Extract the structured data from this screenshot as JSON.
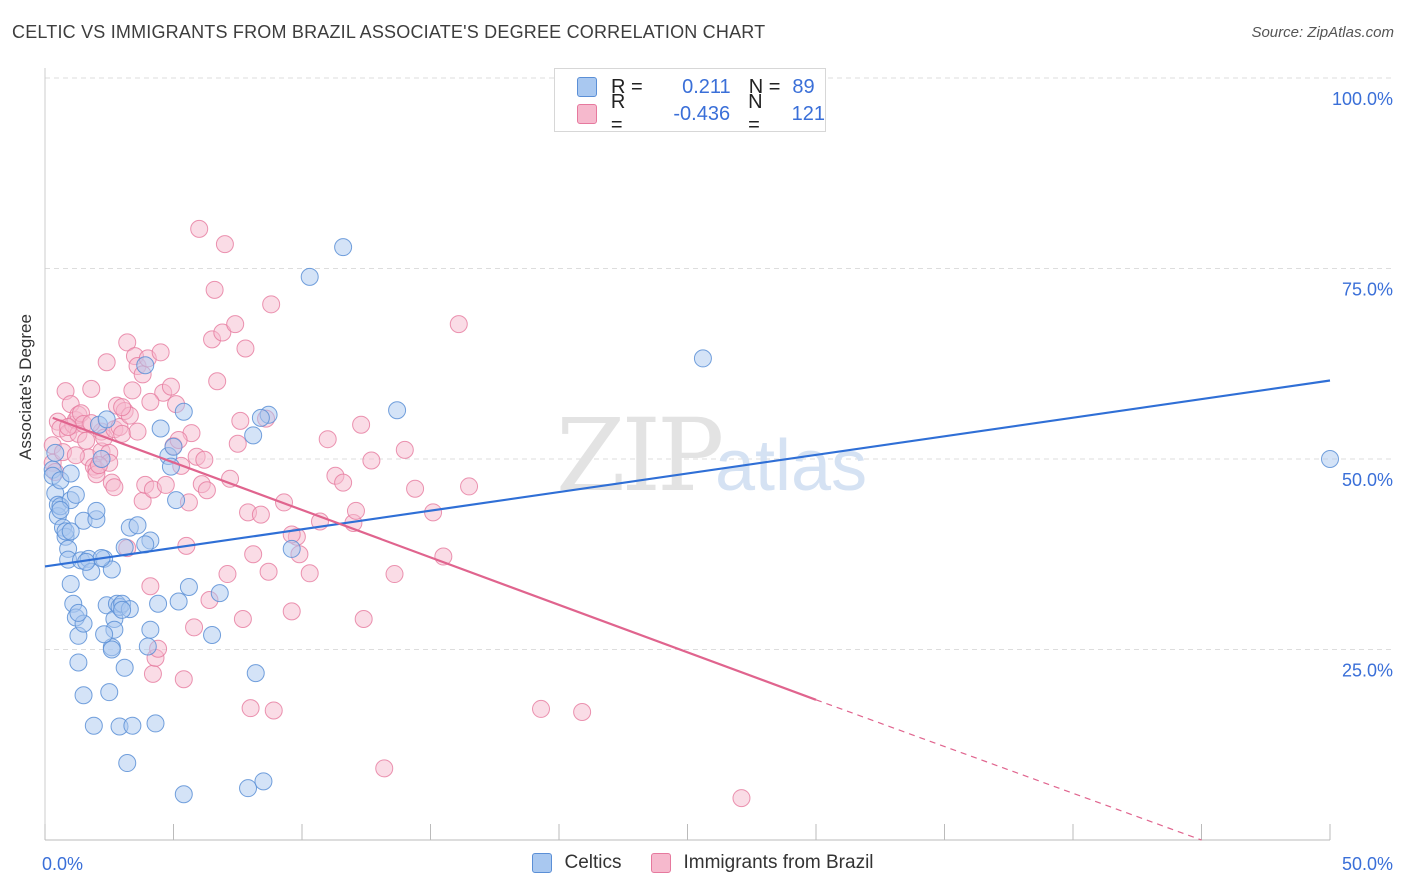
{
  "header": {
    "title": "CELTIC VS IMMIGRANTS FROM BRAZIL ASSOCIATE'S DEGREE CORRELATION CHART",
    "source": "Source: ZipAtlas.com"
  },
  "legend": {
    "rows": [
      {
        "r_label": "R =",
        "r_value": "0.211",
        "n_label": "N =",
        "n_value": "89"
      },
      {
        "r_label": "R =",
        "r_value": "-0.436",
        "n_label": "N =",
        "n_value": "121"
      }
    ]
  },
  "watermark": {
    "zip": "ZIP",
    "atlas": "atlas"
  },
  "colors": {
    "celtic_fill": "#a9c8f0",
    "celtic_stroke": "#5b8fd6",
    "celtic_line": "#2f6fd6",
    "brazil_fill": "#f6b9cd",
    "brazil_stroke": "#e6799e",
    "brazil_line": "#e0648e",
    "tick_label": "#3a6fd8",
    "grid": "#dddddd"
  },
  "chart_data": {
    "type": "scatter",
    "title": "CELTIC VS IMMIGRANTS FROM BRAZIL ASSOCIATE'S DEGREE CORRELATION CHART",
    "xlabel": "",
    "ylabel": "Associate's Degree",
    "xlim": [
      0,
      50
    ],
    "ylim": [
      0,
      100
    ],
    "x_tick_labels": [
      "0.0%",
      "50.0%"
    ],
    "y_tick_labels": [
      "100.0%",
      "75.0%",
      "50.0%",
      "25.0%"
    ],
    "y_tick_values": [
      100,
      75,
      50,
      25
    ],
    "grid": true,
    "legend_position": "top-center",
    "series": [
      {
        "name": "Celtics",
        "r": 0.211,
        "n": 89,
        "trend": {
          "x0": 0,
          "y0": 35.9,
          "x1": 50,
          "y1": 60.3
        },
        "points": [
          [
            0.3,
            48.6
          ],
          [
            0.3,
            47.8
          ],
          [
            0.4,
            50.8
          ],
          [
            0.4,
            45.5
          ],
          [
            0.5,
            44.0
          ],
          [
            0.5,
            42.5
          ],
          [
            0.6,
            47.2
          ],
          [
            0.6,
            43.8
          ],
          [
            0.7,
            41.0
          ],
          [
            0.8,
            39.8
          ],
          [
            0.8,
            40.5
          ],
          [
            0.9,
            38.2
          ],
          [
            0.9,
            36.8
          ],
          [
            1.0,
            48.1
          ],
          [
            1.0,
            44.6
          ],
          [
            1.0,
            33.6
          ],
          [
            1.1,
            31.0
          ],
          [
            1.2,
            45.3
          ],
          [
            1.2,
            29.2
          ],
          [
            1.3,
            26.8
          ],
          [
            1.3,
            23.3
          ],
          [
            1.4,
            36.7
          ],
          [
            1.5,
            41.9
          ],
          [
            1.5,
            28.4
          ],
          [
            1.5,
            19.0
          ],
          [
            1.7,
            36.9
          ],
          [
            1.8,
            35.2
          ],
          [
            1.9,
            15.0
          ],
          [
            2.0,
            42.1
          ],
          [
            2.0,
            43.2
          ],
          [
            2.1,
            54.5
          ],
          [
            2.2,
            50.0
          ],
          [
            2.3,
            36.9
          ],
          [
            2.4,
            55.2
          ],
          [
            2.4,
            30.8
          ],
          [
            2.5,
            19.4
          ],
          [
            2.6,
            35.5
          ],
          [
            2.6,
            25.3
          ],
          [
            2.7,
            29.0
          ],
          [
            2.7,
            27.6
          ],
          [
            2.8,
            31.0
          ],
          [
            2.9,
            30.6
          ],
          [
            2.9,
            14.9
          ],
          [
            3.0,
            31.0
          ],
          [
            3.1,
            38.4
          ],
          [
            3.1,
            22.6
          ],
          [
            3.2,
            10.1
          ],
          [
            3.3,
            30.3
          ],
          [
            3.3,
            41.0
          ],
          [
            3.4,
            15.0
          ],
          [
            3.6,
            41.3
          ],
          [
            3.9,
            62.3
          ],
          [
            4.0,
            25.4
          ],
          [
            4.1,
            39.3
          ],
          [
            4.1,
            27.6
          ],
          [
            4.3,
            15.3
          ],
          [
            4.4,
            31.0
          ],
          [
            4.5,
            54.0
          ],
          [
            4.8,
            50.4
          ],
          [
            4.9,
            49.0
          ],
          [
            5.0,
            51.6
          ],
          [
            5.1,
            44.6
          ],
          [
            5.2,
            31.3
          ],
          [
            5.4,
            56.2
          ],
          [
            5.4,
            6.0
          ],
          [
            5.6,
            33.2
          ],
          [
            6.5,
            26.9
          ],
          [
            6.8,
            32.4
          ],
          [
            7.9,
            6.8
          ],
          [
            8.1,
            53.1
          ],
          [
            8.2,
            21.9
          ],
          [
            8.5,
            7.7
          ],
          [
            8.7,
            55.8
          ],
          [
            9.6,
            38.2
          ],
          [
            10.3,
            73.9
          ],
          [
            11.6,
            77.8
          ],
          [
            13.7,
            56.4
          ],
          [
            25.6,
            63.2
          ],
          [
            50.0,
            50.0
          ],
          [
            2.2,
            37.0
          ],
          [
            1.0,
            40.5
          ],
          [
            2.6,
            25.0
          ],
          [
            3.0,
            30.2
          ],
          [
            0.6,
            43.3
          ],
          [
            1.6,
            36.5
          ],
          [
            3.9,
            38.8
          ],
          [
            2.3,
            27.0
          ],
          [
            1.3,
            29.8
          ],
          [
            8.4,
            55.4
          ]
        ]
      },
      {
        "name": "Immigrants from Brazil",
        "r": -0.436,
        "n": 121,
        "trend": {
          "x0": 0.3,
          "y0": 55.4,
          "x1": 30.0,
          "y1": 18.4
        },
        "trend_dashed": {
          "x0": 30.0,
          "y0": 18.4,
          "x1": 45.0,
          "y1": 0.0
        },
        "points": [
          [
            0.3,
            51.8
          ],
          [
            0.3,
            49.5
          ],
          [
            0.4,
            48.3
          ],
          [
            0.5,
            54.9
          ],
          [
            0.6,
            54.0
          ],
          [
            0.7,
            50.9
          ],
          [
            0.8,
            58.9
          ],
          [
            0.9,
            53.4
          ],
          [
            1.0,
            57.2
          ],
          [
            1.1,
            54.5
          ],
          [
            1.2,
            55.1
          ],
          [
            1.3,
            55.8
          ],
          [
            1.3,
            53.3
          ],
          [
            1.4,
            56.0
          ],
          [
            1.5,
            54.6
          ],
          [
            1.6,
            52.4
          ],
          [
            1.7,
            50.2
          ],
          [
            1.8,
            59.2
          ],
          [
            1.9,
            49.0
          ],
          [
            2.0,
            48.6
          ],
          [
            2.0,
            48.0
          ],
          [
            2.2,
            51.0
          ],
          [
            2.2,
            53.6
          ],
          [
            2.3,
            52.8
          ],
          [
            2.4,
            62.7
          ],
          [
            2.5,
            50.8
          ],
          [
            2.5,
            49.5
          ],
          [
            2.6,
            46.9
          ],
          [
            2.7,
            46.3
          ],
          [
            2.7,
            53.9
          ],
          [
            2.8,
            57.0
          ],
          [
            2.9,
            54.2
          ],
          [
            3.0,
            53.3
          ],
          [
            3.1,
            56.3
          ],
          [
            3.2,
            65.3
          ],
          [
            3.2,
            38.3
          ],
          [
            3.3,
            55.7
          ],
          [
            3.4,
            59.0
          ],
          [
            3.5,
            63.5
          ],
          [
            3.6,
            62.2
          ],
          [
            3.6,
            53.6
          ],
          [
            3.8,
            61.1
          ],
          [
            3.8,
            44.5
          ],
          [
            3.9,
            46.6
          ],
          [
            4.0,
            63.2
          ],
          [
            4.1,
            33.3
          ],
          [
            4.2,
            46.0
          ],
          [
            4.2,
            21.8
          ],
          [
            4.3,
            23.9
          ],
          [
            4.4,
            25.1
          ],
          [
            4.5,
            64.0
          ],
          [
            4.6,
            58.7
          ],
          [
            4.7,
            46.6
          ],
          [
            4.9,
            59.5
          ],
          [
            5.0,
            51.7
          ],
          [
            5.1,
            57.2
          ],
          [
            5.3,
            49.1
          ],
          [
            5.4,
            21.1
          ],
          [
            5.5,
            38.6
          ],
          [
            5.6,
            44.3
          ],
          [
            5.7,
            53.4
          ],
          [
            5.8,
            27.9
          ],
          [
            5.9,
            50.3
          ],
          [
            6.0,
            80.2
          ],
          [
            6.1,
            46.7
          ],
          [
            6.2,
            49.9
          ],
          [
            6.3,
            45.9
          ],
          [
            6.5,
            65.7
          ],
          [
            6.6,
            72.2
          ],
          [
            6.7,
            60.2
          ],
          [
            6.9,
            66.6
          ],
          [
            7.0,
            78.2
          ],
          [
            7.1,
            34.9
          ],
          [
            7.2,
            47.4
          ],
          [
            7.4,
            67.7
          ],
          [
            7.5,
            52.0
          ],
          [
            7.7,
            29.0
          ],
          [
            7.8,
            64.5
          ],
          [
            7.9,
            43.0
          ],
          [
            8.0,
            17.3
          ],
          [
            8.1,
            37.5
          ],
          [
            8.4,
            42.7
          ],
          [
            8.6,
            55.3
          ],
          [
            8.7,
            35.2
          ],
          [
            8.8,
            70.3
          ],
          [
            8.9,
            17.0
          ],
          [
            9.3,
            44.3
          ],
          [
            9.6,
            30.0
          ],
          [
            9.8,
            39.8
          ],
          [
            9.9,
            37.5
          ],
          [
            10.3,
            35.0
          ],
          [
            10.7,
            41.8
          ],
          [
            11.0,
            52.6
          ],
          [
            11.3,
            47.8
          ],
          [
            11.6,
            46.9
          ],
          [
            12.0,
            41.6
          ],
          [
            12.1,
            43.2
          ],
          [
            12.3,
            54.5
          ],
          [
            12.4,
            29.0
          ],
          [
            12.7,
            49.8
          ],
          [
            13.2,
            9.4
          ],
          [
            13.6,
            34.9
          ],
          [
            14.0,
            51.2
          ],
          [
            14.4,
            46.1
          ],
          [
            15.1,
            43.0
          ],
          [
            15.5,
            37.2
          ],
          [
            16.1,
            67.7
          ],
          [
            16.5,
            46.4
          ],
          [
            19.3,
            17.2
          ],
          [
            20.9,
            16.8
          ],
          [
            27.1,
            5.5
          ],
          [
            1.2,
            50.5
          ],
          [
            2.1,
            49.2
          ],
          [
            3.0,
            56.8
          ],
          [
            4.1,
            57.5
          ],
          [
            0.9,
            54.2
          ],
          [
            1.8,
            54.7
          ],
          [
            5.2,
            52.5
          ],
          [
            6.4,
            31.5
          ],
          [
            9.6,
            40.1
          ],
          [
            7.6,
            55.0
          ]
        ]
      }
    ]
  },
  "bottom_legend": [
    {
      "label": "Celtics"
    },
    {
      "label": "Immigrants from Brazil"
    }
  ]
}
